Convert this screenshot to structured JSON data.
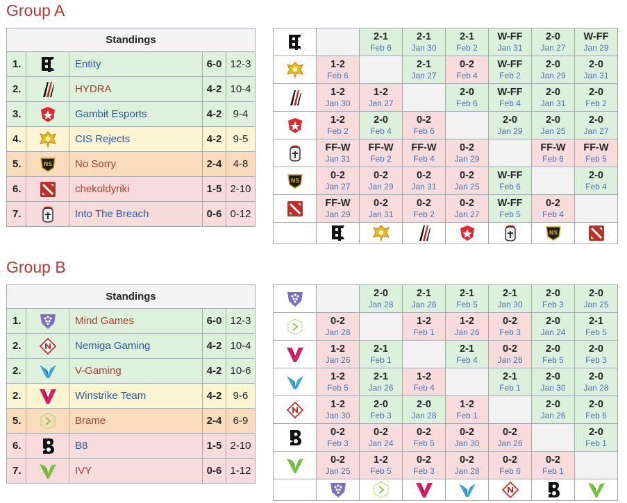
{
  "colors": {
    "title": "#b03a32",
    "link": "#2a55a3",
    "win": "#dcf1dc",
    "loss": "#f8dcdc"
  },
  "groups": [
    {
      "title": "Group A",
      "standings_label": "Standings",
      "teams": [
        {
          "pos": "1.",
          "name": "Entity",
          "record": "6-0",
          "games": "12-3",
          "icon": "entity-logo",
          "color": "blue",
          "tier": "up"
        },
        {
          "pos": "2.",
          "name": "HYDRA",
          "record": "4-2",
          "games": "10-4",
          "icon": "hydra-logo",
          "color": "red",
          "tier": "up"
        },
        {
          "pos": "3.",
          "name": "Gambit Esports",
          "record": "4-2",
          "games": "9-4",
          "icon": "gambit-logo",
          "color": "blue",
          "tier": "up"
        },
        {
          "pos": "4.",
          "name": "CIS Rejects",
          "record": "4-2",
          "games": "9-5",
          "icon": "cis-rejects-logo",
          "color": "blue",
          "tier": "mid"
        },
        {
          "pos": "5.",
          "name": "No Sorry",
          "record": "2-4",
          "games": "4-8",
          "icon": "no-sorry-logo",
          "color": "red",
          "tier": "low"
        },
        {
          "pos": "6.",
          "name": "chekoldyriki",
          "record": "1-5",
          "games": "2-10",
          "icon": "dota-logo",
          "color": "red",
          "tier": "out"
        },
        {
          "pos": "7.",
          "name": "Into The Breach",
          "record": "0-6",
          "games": "0-12",
          "icon": "itb-logo",
          "color": "blue",
          "tier": "out"
        }
      ],
      "cross_rows": [
        "entity-logo",
        "cis-rejects-logo",
        "hydra-logo",
        "gambit-logo",
        "itb-logo",
        "no-sorry-logo",
        "dota-logo"
      ],
      "cross_cols": [
        "entity-logo",
        "cis-rejects-logo",
        "hydra-logo",
        "gambit-logo",
        "itb-logo",
        "no-sorry-logo",
        "dota-logo"
      ],
      "matrix": [
        [
          null,
          {
            "s": "2-1",
            "d": "Feb 6",
            "r": "w"
          },
          {
            "s": "2-1",
            "d": "Jan 30",
            "r": "w"
          },
          {
            "s": "2-1",
            "d": "Feb 2",
            "r": "w"
          },
          {
            "s": "W-FF",
            "d": "Jan 31",
            "r": "w"
          },
          {
            "s": "2-0",
            "d": "Jan 27",
            "r": "w"
          },
          {
            "s": "W-FF",
            "d": "Jan 29",
            "r": "w"
          }
        ],
        [
          {
            "s": "1-2",
            "d": "Feb 6",
            "r": "l"
          },
          null,
          {
            "s": "2-1",
            "d": "Jan 27",
            "r": "w"
          },
          {
            "s": "0-2",
            "d": "Feb 4",
            "r": "l"
          },
          {
            "s": "W-FF",
            "d": "Feb 2",
            "r": "w"
          },
          {
            "s": "2-0",
            "d": "Jan 29",
            "r": "w"
          },
          {
            "s": "2-0",
            "d": "Jan 31",
            "r": "w"
          }
        ],
        [
          {
            "s": "1-2",
            "d": "Jan 30",
            "r": "l"
          },
          {
            "s": "1-2",
            "d": "Jan 27",
            "r": "l"
          },
          null,
          {
            "s": "2-0",
            "d": "Feb 6",
            "r": "w"
          },
          {
            "s": "W-FF",
            "d": "Feb 4",
            "r": "w"
          },
          {
            "s": "2-0",
            "d": "Jan 31",
            "r": "w"
          },
          {
            "s": "2-0",
            "d": "Feb 2",
            "r": "w"
          }
        ],
        [
          {
            "s": "1-2",
            "d": "Feb 2",
            "r": "l"
          },
          {
            "s": "2-0",
            "d": "Feb 4",
            "r": "w"
          },
          {
            "s": "0-2",
            "d": "Feb 6",
            "r": "l"
          },
          null,
          {
            "s": "2-0",
            "d": "Jan 29",
            "r": "w"
          },
          {
            "s": "2-0",
            "d": "Jan 25",
            "r": "w"
          },
          {
            "s": "2-0",
            "d": "Jan 27",
            "r": "w"
          }
        ],
        [
          {
            "s": "FF-W",
            "d": "Jan 31",
            "r": "l"
          },
          {
            "s": "FF-W",
            "d": "Feb 2",
            "r": "l"
          },
          {
            "s": "FF-W",
            "d": "Feb 4",
            "r": "l"
          },
          {
            "s": "0-2",
            "d": "Jan 29",
            "r": "l"
          },
          null,
          {
            "s": "FF-W",
            "d": "Feb 6",
            "r": "l"
          },
          {
            "s": "FF-W",
            "d": "Feb 5",
            "r": "l"
          }
        ],
        [
          {
            "s": "0-2",
            "d": "Jan 27",
            "r": "l"
          },
          {
            "s": "0-2",
            "d": "Jan 29",
            "r": "l"
          },
          {
            "s": "0-2",
            "d": "Jan 31",
            "r": "l"
          },
          {
            "s": "0-2",
            "d": "Jan 25",
            "r": "l"
          },
          {
            "s": "W-FF",
            "d": "Feb 6",
            "r": "w"
          },
          null,
          {
            "s": "2-0",
            "d": "Feb 4",
            "r": "w"
          }
        ],
        [
          {
            "s": "FF-W",
            "d": "Jan 29",
            "r": "l"
          },
          {
            "s": "0-2",
            "d": "Jan 31",
            "r": "l"
          },
          {
            "s": "0-2",
            "d": "Feb 2",
            "r": "l"
          },
          {
            "s": "0-2",
            "d": "Jan 27",
            "r": "l"
          },
          {
            "s": "W-FF",
            "d": "Feb 5",
            "r": "w"
          },
          {
            "s": "0-2",
            "d": "Feb 4",
            "r": "l"
          },
          null
        ]
      ]
    },
    {
      "title": "Group B",
      "standings_label": "Standings",
      "teams": [
        {
          "pos": "1.",
          "name": "Mind Games",
          "record": "6-0",
          "games": "12-3",
          "icon": "mind-games-logo",
          "color": "red",
          "tier": "up"
        },
        {
          "pos": "2.",
          "name": "Nemiga Gaming",
          "record": "4-2",
          "games": "10-4",
          "icon": "nemiga-logo",
          "color": "blue",
          "tier": "up"
        },
        {
          "pos": "2.",
          "name": "V-Gaming",
          "record": "4-2",
          "games": "10-6",
          "icon": "v-gaming-logo",
          "color": "red",
          "tier": "up"
        },
        {
          "pos": "2.",
          "name": "Winstrike Team",
          "record": "4-2",
          "games": "9-6",
          "icon": "winstrike-logo",
          "color": "blue",
          "tier": "mid"
        },
        {
          "pos": "5.",
          "name": "Brame",
          "record": "2-4",
          "games": "6-9",
          "icon": "brame-logo",
          "color": "red",
          "tier": "low"
        },
        {
          "pos": "6.",
          "name": "B8",
          "record": "1-5",
          "games": "2-10",
          "icon": "b8-logo",
          "color": "blue",
          "tier": "out"
        },
        {
          "pos": "7.",
          "name": "IVY",
          "record": "0-6",
          "games": "1-12",
          "icon": "ivy-logo",
          "color": "red",
          "tier": "out"
        }
      ],
      "cross_rows": [
        "mind-games-logo",
        "brame-logo",
        "winstrike-logo",
        "v-gaming-logo",
        "nemiga-logo",
        "b8-logo",
        "ivy-logo"
      ],
      "cross_cols": [
        "mind-games-logo",
        "brame-logo",
        "winstrike-logo",
        "v-gaming-logo",
        "nemiga-logo",
        "b8-logo",
        "ivy-logo"
      ],
      "matrix": [
        [
          null,
          {
            "s": "2-0",
            "d": "Jan 28",
            "r": "w"
          },
          {
            "s": "2-1",
            "d": "Jan 26",
            "r": "w"
          },
          {
            "s": "2-1",
            "d": "Feb 5",
            "r": "w"
          },
          {
            "s": "2-1",
            "d": "Jan 30",
            "r": "w"
          },
          {
            "s": "2-0",
            "d": "Feb 3",
            "r": "w"
          },
          {
            "s": "2-0",
            "d": "Jan 25",
            "r": "w"
          }
        ],
        [
          {
            "s": "0-2",
            "d": "Jan 28",
            "r": "l"
          },
          null,
          {
            "s": "1-2",
            "d": "Feb 1",
            "r": "l"
          },
          {
            "s": "1-2",
            "d": "Jan 26",
            "r": "l"
          },
          {
            "s": "0-2",
            "d": "Feb 3",
            "r": "l"
          },
          {
            "s": "2-0",
            "d": "Jan 24",
            "r": "w"
          },
          {
            "s": "2-1",
            "d": "Feb 5",
            "r": "w"
          }
        ],
        [
          {
            "s": "1-2",
            "d": "Jan 26",
            "r": "l"
          },
          {
            "s": "2-1",
            "d": "Feb 1",
            "r": "w"
          },
          null,
          {
            "s": "2-1",
            "d": "Feb 4",
            "r": "w"
          },
          {
            "s": "0-2",
            "d": "Jan 28",
            "r": "l"
          },
          {
            "s": "2-0",
            "d": "Feb 5",
            "r": "w"
          },
          {
            "s": "2-0",
            "d": "Feb 3",
            "r": "w"
          }
        ],
        [
          {
            "s": "1-2",
            "d": "Feb 5",
            "r": "l"
          },
          {
            "s": "2-1",
            "d": "Jan 26",
            "r": "w"
          },
          {
            "s": "1-2",
            "d": "Feb 4",
            "r": "l"
          },
          null,
          {
            "s": "2-1",
            "d": "Feb 1",
            "r": "w"
          },
          {
            "s": "2-0",
            "d": "Jan 30",
            "r": "w"
          },
          {
            "s": "2-0",
            "d": "Jan 28",
            "r": "w"
          }
        ],
        [
          {
            "s": "1-2",
            "d": "Jan 30",
            "r": "l"
          },
          {
            "s": "2-0",
            "d": "Feb 3",
            "r": "w"
          },
          {
            "s": "2-0",
            "d": "Jan 28",
            "r": "w"
          },
          {
            "s": "1-2",
            "d": "Feb 1",
            "r": "l"
          },
          null,
          {
            "s": "2-0",
            "d": "Jan 26",
            "r": "w"
          },
          {
            "s": "2-0",
            "d": "Feb 6",
            "r": "w"
          }
        ],
        [
          {
            "s": "0-2",
            "d": "Feb 3",
            "r": "l"
          },
          {
            "s": "0-2",
            "d": "Jan 24",
            "r": "l"
          },
          {
            "s": "0-2",
            "d": "Feb 5",
            "r": "l"
          },
          {
            "s": "0-2",
            "d": "Jan 30",
            "r": "l"
          },
          {
            "s": "0-2",
            "d": "Jan 26",
            "r": "l"
          },
          null,
          {
            "s": "2-0",
            "d": "Feb 1",
            "r": "w"
          }
        ],
        [
          {
            "s": "0-2",
            "d": "Jan 25",
            "r": "l"
          },
          {
            "s": "1-2",
            "d": "Feb 5",
            "r": "l"
          },
          {
            "s": "0-2",
            "d": "Feb 3",
            "r": "l"
          },
          {
            "s": "0-2",
            "d": "Jan 28",
            "r": "l"
          },
          {
            "s": "0-2",
            "d": "Feb 6",
            "r": "l"
          },
          {
            "s": "0-2",
            "d": "Feb 1",
            "r": "l"
          },
          null
        ]
      ]
    }
  ]
}
